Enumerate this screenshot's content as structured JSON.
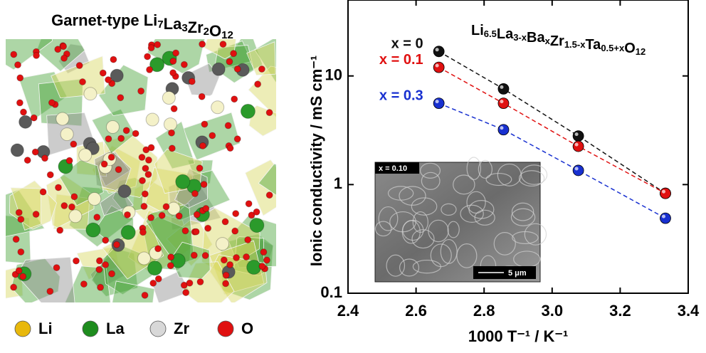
{
  "structure": {
    "title_parts": [
      [
        "Garnet-type Li",
        "7"
      ],
      [
        "La",
        "3"
      ],
      [
        "Zr",
        "2"
      ],
      [
        "O",
        "12"
      ]
    ],
    "legend": [
      {
        "name": "Li",
        "color": "#e8b80c"
      },
      {
        "name": "La",
        "color": "#1e8c1e"
      },
      {
        "name": "Zr",
        "color": "#d8d8d8"
      },
      {
        "name": "O",
        "color": "#e01010"
      }
    ]
  },
  "chart_data": {
    "type": "line",
    "log_y": true,
    "formula_parts": [
      [
        "Li",
        "6.5"
      ],
      [
        "La",
        "3-x"
      ],
      [
        "Ba",
        "x"
      ],
      [
        "Zr",
        "1.5-x"
      ],
      [
        "Ta",
        "0.5+x"
      ],
      [
        "O",
        "12"
      ]
    ],
    "x_label": "1000 T⁻¹ / K⁻¹",
    "y_label": "Ionic conductivity / mS cm⁻¹",
    "x": [
      2.667,
      2.857,
      3.077,
      3.333
    ],
    "series": [
      {
        "name": "x = 0",
        "color": "#111111",
        "values": [
          16.8,
          7.6,
          2.8,
          0.83
        ]
      },
      {
        "name": "x = 0.1",
        "color": "#e01010",
        "values": [
          12,
          5.6,
          2.25,
          0.83
        ]
      },
      {
        "name": "x = 0.3",
        "color": "#1830d0",
        "values": [
          5.6,
          3.2,
          1.35,
          0.49
        ]
      }
    ],
    "xlim": [
      2.4,
      3.4
    ],
    "xticks": [
      2.4,
      2.6,
      2.8,
      {
        "value": 3,
        "label": "3.0"
      },
      3.2,
      3.4
    ],
    "ylim": [
      0.1,
      50
    ],
    "yticks": [
      0.1,
      1,
      10
    ],
    "inset": {
      "label": "x = 0.10",
      "scale_bar": "5 μm"
    }
  }
}
